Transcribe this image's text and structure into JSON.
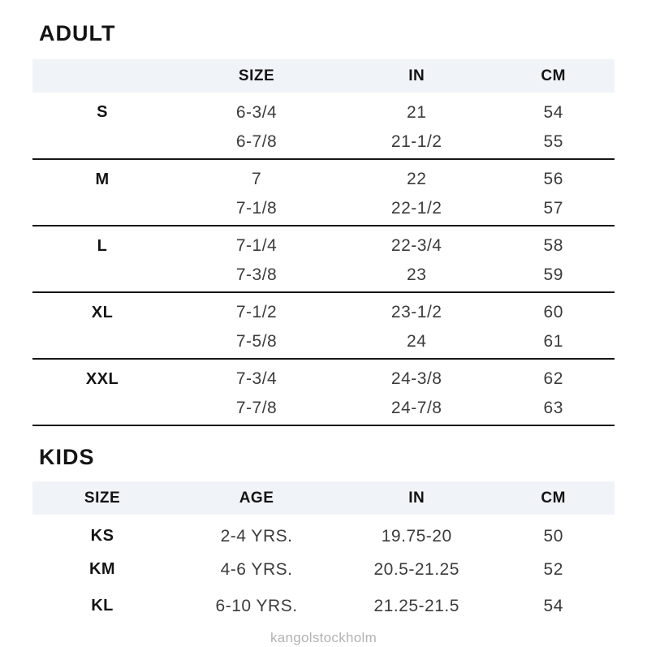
{
  "colors": {
    "header_bg": "#f0f3f7",
    "separator": "#161616",
    "muted_footer": "#b3b3b3"
  },
  "adult": {
    "title": "ADULT",
    "header": [
      "",
      "SIZE",
      "IN",
      "CM"
    ],
    "rows": [
      {
        "size": "S",
        "hat": "6-3/4",
        "in": "21",
        "cm": "54"
      },
      {
        "size": "",
        "hat": "6-7/8",
        "in": "21-1/2",
        "cm": "55"
      },
      {
        "size": "M",
        "hat": "7",
        "in": "22",
        "cm": "56"
      },
      {
        "size": "",
        "hat": "7-1/8",
        "in": "22-1/2",
        "cm": "57"
      },
      {
        "size": "L",
        "hat": "7-1/4",
        "in": "22-3/4",
        "cm": "58"
      },
      {
        "size": "",
        "hat": "7-3/8",
        "in": "23",
        "cm": "59"
      },
      {
        "size": "XL",
        "hat": "7-1/2",
        "in": "23-1/2",
        "cm": "60"
      },
      {
        "size": "",
        "hat": "7-5/8",
        "in": "24",
        "cm": "61"
      },
      {
        "size": "XXL",
        "hat": "7-3/4",
        "in": "24-3/8",
        "cm": "62"
      },
      {
        "size": "",
        "hat": "7-7/8",
        "in": "24-7/8",
        "cm": "63"
      }
    ]
  },
  "kids": {
    "title": "KIDS",
    "header": [
      "SIZE",
      "AGE",
      "IN",
      "CM"
    ],
    "rows": [
      {
        "size": "KS",
        "age": "2-4 YRS.",
        "in": "19.75-20",
        "cm": "50"
      },
      {
        "size": "KM",
        "age": "4-6 YRS.",
        "in": "20.5-21.25",
        "cm": "52"
      },
      {
        "size": "KL",
        "age": "6-10 YRS.",
        "in": "21.25-21.5",
        "cm": "54"
      }
    ]
  },
  "footer": {
    "brand": "kangolstockholm"
  }
}
